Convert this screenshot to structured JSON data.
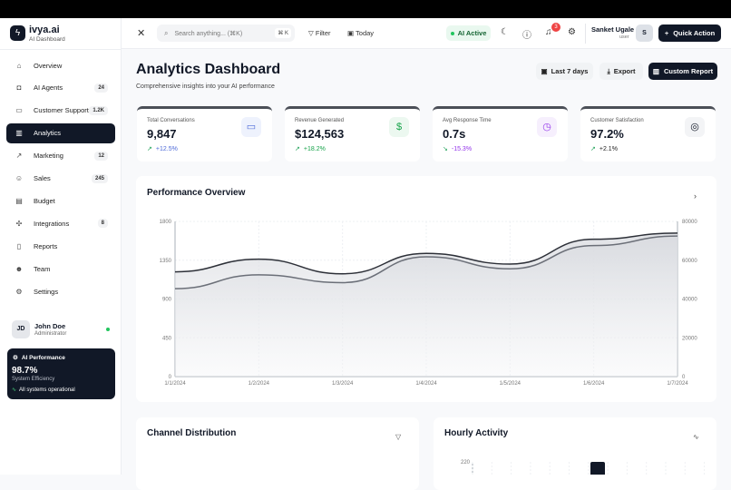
{
  "app": {
    "name": "ivya.ai",
    "subtitle": "AI Dashboard"
  },
  "sidebar": {
    "items": [
      {
        "label": "Overview",
        "icon": "home-icon",
        "glyph": "⌂",
        "badge": ""
      },
      {
        "label": "AI Agents",
        "icon": "bot-icon",
        "glyph": "◘",
        "badge": "24"
      },
      {
        "label": "Customer Support",
        "icon": "message-icon",
        "glyph": "▭",
        "badge": "1.2K"
      },
      {
        "label": "Analytics",
        "icon": "bar-chart-icon",
        "glyph": "▥",
        "badge": "",
        "active": true
      },
      {
        "label": "Marketing",
        "icon": "trending-up-icon",
        "glyph": "↗",
        "badge": "12"
      },
      {
        "label": "Sales",
        "icon": "users-icon",
        "glyph": "☺",
        "badge": "245"
      },
      {
        "label": "Budget",
        "icon": "calculator-icon",
        "glyph": "▤",
        "badge": ""
      },
      {
        "label": "Integrations",
        "icon": "puzzle-icon",
        "glyph": "✣",
        "badge": "8"
      },
      {
        "label": "Reports",
        "icon": "file-icon",
        "glyph": "▯",
        "badge": ""
      },
      {
        "label": "Team",
        "icon": "user-icon",
        "glyph": "☻",
        "badge": ""
      },
      {
        "label": "Settings",
        "icon": "gear-icon",
        "glyph": "⚙",
        "badge": ""
      }
    ],
    "user": {
      "initials": "JD",
      "name": "John Doe",
      "role": "Administrator"
    },
    "ai_performance": {
      "title": "AI Performance",
      "value": "98.7%",
      "label": "System Efficiency",
      "status": "All systems operational"
    }
  },
  "topbar": {
    "search_placeholder": "Search anything... (⌘K)",
    "shortcut": "⌘ K",
    "filter": "Filter",
    "today": "Today",
    "ai_status": "AI Active",
    "notifications": "3",
    "user_name": "Sanket Ugale",
    "user_role": "user",
    "user_initial": "S",
    "quick_action": "Quick Action"
  },
  "header": {
    "title": "Analytics Dashboard",
    "subtitle": "Comprehensive insights into your AI performance",
    "range": "Last 7 days",
    "export": "Export",
    "custom_report": "Custom Report"
  },
  "kpis": [
    {
      "label": "Total Conversations",
      "value": "9,847",
      "change": "+12.5%",
      "icon": "message-icon",
      "color": "#4f6bd8",
      "bg": "#eef2fd"
    },
    {
      "label": "Revenue Generated",
      "value": "$124,563",
      "change": "+18.2%",
      "icon": "dollar-icon",
      "color": "#16a34a",
      "bg": "#ecf8f0"
    },
    {
      "label": "Avg Response Time",
      "value": "0.7s",
      "change": "-15.3%",
      "icon": "clock-icon",
      "color": "#9333ea",
      "bg": "#f6effd"
    },
    {
      "label": "Customer Satisfaction",
      "value": "97.2%",
      "change": "+2.1%",
      "icon": "target-icon",
      "color": "#111827",
      "bg": "#f3f4f6"
    }
  ],
  "performance": {
    "title": "Performance Overview"
  },
  "chart_data": [
    {
      "type": "area",
      "title": "Performance Overview",
      "x": [
        "1/1/2024",
        "1/2/2024",
        "1/3/2024",
        "1/4/2024",
        "1/5/2024",
        "1/6/2024",
        "1/7/2024"
      ],
      "y_left": {
        "ticks": [
          "0",
          "450",
          "900",
          "1350",
          "1800"
        ],
        "range": [
          0,
          1800
        ]
      },
      "y_right": {
        "ticks": [
          "0",
          "20000",
          "40000",
          "60000",
          "80000"
        ],
        "range": [
          0,
          80000
        ]
      },
      "grid": true,
      "series": [
        {
          "axis": "right",
          "color": "#2d3038",
          "values": [
            54000,
            60500,
            53000,
            63500,
            58000,
            70800,
            74000
          ]
        },
        {
          "axis": "left",
          "color": "#6b6f78",
          "values": [
            1020,
            1180,
            1090,
            1390,
            1250,
            1520,
            1630
          ]
        }
      ]
    },
    {
      "type": "bar",
      "title": "Hourly Activity",
      "y_ticks": [
        "220"
      ],
      "visible_bars": [
        220,
        198
      ]
    }
  ],
  "channel": {
    "title": "Channel Distribution"
  },
  "hourly": {
    "title": "Hourly Activity"
  }
}
